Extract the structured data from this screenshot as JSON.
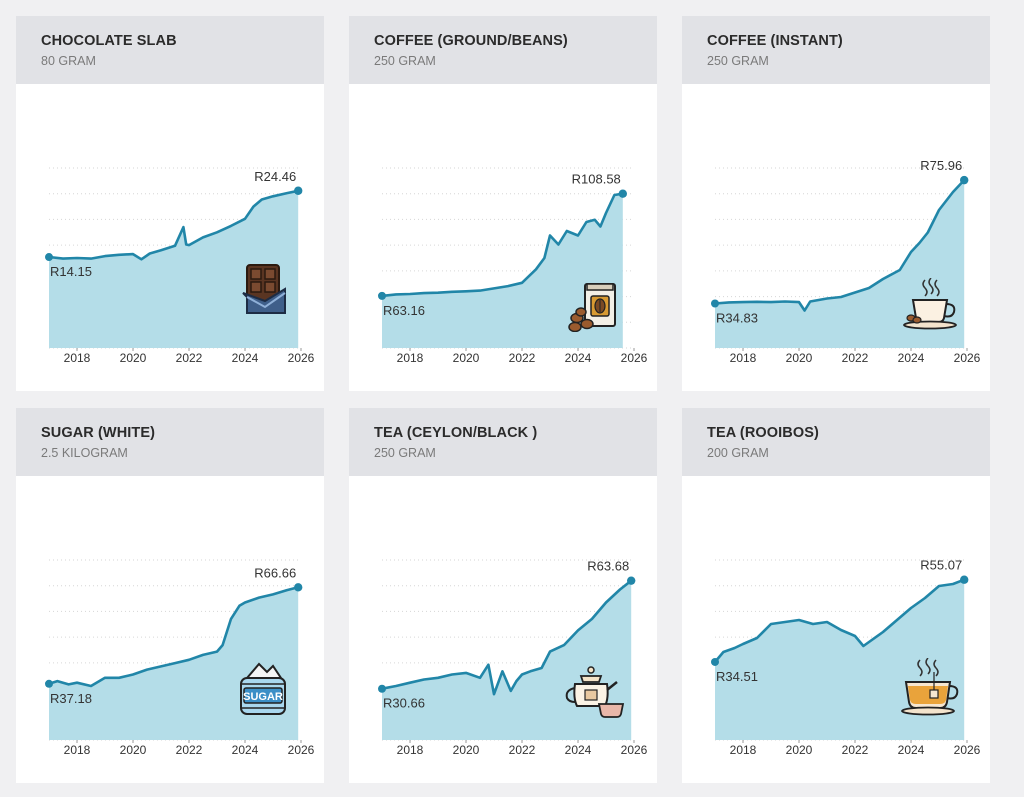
{
  "layout": {
    "x_min": 2017.0,
    "x_max": 2026.0,
    "x_ticks": [
      2018,
      2020,
      2022,
      2024,
      2026
    ]
  },
  "colors": {
    "line": "#2186a8",
    "area": "#b4dde8",
    "grid": "#d6d6d6",
    "page": "#f0f0f2",
    "header": "#e1e2e6"
  },
  "cards": [
    {
      "title": "CHOCOLATE SLAB",
      "subtitle": "80 GRAM",
      "start_label": "R14.15",
      "end_label": "R24.46",
      "icon": "chocolate-icon"
    },
    {
      "title": "COFFEE (GROUND/BEANS)",
      "subtitle": "250 GRAM",
      "start_label": "R63.16",
      "end_label": "R108.58",
      "icon": "coffee-bag-icon"
    },
    {
      "title": "COFFEE (INSTANT)",
      "subtitle": "250 GRAM",
      "start_label": "R34.83",
      "end_label": "R75.96",
      "icon": "coffee-cup-icon"
    },
    {
      "title": "SUGAR (WHITE)",
      "subtitle": "2.5 KILOGRAM",
      "start_label": "R37.18",
      "end_label": "R66.66",
      "icon": "sugar-bag-icon"
    },
    {
      "title": "TEA (CEYLON/BLACK )",
      "subtitle": "250 GRAM",
      "start_label": "R30.66",
      "end_label": "R63.68",
      "icon": "teapot-icon"
    },
    {
      "title": "TEA (ROOIBOS)",
      "subtitle": "200 GRAM",
      "start_label": "R34.51",
      "end_label": "R55.07",
      "icon": "tea-cup-icon"
    }
  ],
  "chart_data": [
    {
      "type": "area",
      "title": "CHOCOLATE SLAB",
      "subtitle": "80 GRAM",
      "ylim": [
        0,
        28
      ],
      "x_ticks": [
        2018,
        2020,
        2022,
        2024,
        2026
      ],
      "start_label": "R14.15",
      "end_label": "R24.46",
      "x": [
        2017.0,
        2017.5,
        2018.0,
        2018.5,
        2019.0,
        2019.5,
        2020.0,
        2020.3,
        2020.6,
        2021.0,
        2021.5,
        2021.8,
        2021.9,
        2022.0,
        2022.5,
        2023.0,
        2023.5,
        2024.0,
        2024.3,
        2024.6,
        2025.0,
        2025.5,
        2025.9
      ],
      "y": [
        14.15,
        13.9,
        14.0,
        13.9,
        14.3,
        14.5,
        14.6,
        13.8,
        14.7,
        15.2,
        15.9,
        18.8,
        16.1,
        16.0,
        17.2,
        18.0,
        19.0,
        20.1,
        22.0,
        23.1,
        23.6,
        24.1,
        24.46
      ]
    },
    {
      "type": "area",
      "title": "COFFEE (GROUND/BEANS)",
      "subtitle": "250 GRAM",
      "ylim": [
        40,
        120
      ],
      "x_ticks": [
        2018,
        2020,
        2022,
        2024,
        2026
      ],
      "start_label": "R63.16",
      "end_label": "R108.58",
      "x": [
        2017.0,
        2017.5,
        2018.0,
        2018.5,
        2019.0,
        2019.5,
        2020.0,
        2020.5,
        2021.0,
        2021.5,
        2022.0,
        2022.5,
        2022.8,
        2023.0,
        2023.3,
        2023.6,
        2024.0,
        2024.3,
        2024.6,
        2024.8,
        2025.0,
        2025.3,
        2025.6
      ],
      "y": [
        63.16,
        63.8,
        64.0,
        64.4,
        64.6,
        65.0,
        65.2,
        65.5,
        66.5,
        67.5,
        69.0,
        75.0,
        80.0,
        90.0,
        86.0,
        92.0,
        90.0,
        96.0,
        97.0,
        94.0,
        100.0,
        108.0,
        108.58
      ]
    },
    {
      "type": "area",
      "title": "COFFEE (INSTANT)",
      "subtitle": "250 GRAM",
      "ylim": [
        20,
        80
      ],
      "x_ticks": [
        2018,
        2020,
        2022,
        2024,
        2026
      ],
      "start_label": "R34.83",
      "end_label": "R75.96",
      "x": [
        2017.0,
        2017.5,
        2018.0,
        2018.5,
        2019.0,
        2019.5,
        2020.0,
        2020.2,
        2020.4,
        2021.0,
        2021.5,
        2022.0,
        2022.5,
        2023.0,
        2023.3,
        2023.6,
        2024.0,
        2024.3,
        2024.6,
        2025.0,
        2025.5,
        2025.9
      ],
      "y": [
        34.83,
        35.2,
        35.3,
        35.4,
        35.3,
        35.5,
        35.3,
        32.5,
        35.5,
        36.5,
        37.0,
        38.5,
        40.0,
        43.0,
        44.5,
        46.0,
        52.0,
        55.0,
        58.5,
        66.0,
        72.0,
        75.96
      ]
    },
    {
      "type": "area",
      "title": "SUGAR (WHITE)",
      "subtitle": "2.5 KILOGRAM",
      "ylim": [
        20,
        75
      ],
      "x_ticks": [
        2018,
        2020,
        2022,
        2024,
        2026
      ],
      "start_label": "R37.18",
      "end_label": "R66.66",
      "x": [
        2017.0,
        2017.3,
        2017.7,
        2018.0,
        2018.5,
        2019.0,
        2019.5,
        2020.0,
        2020.5,
        2021.0,
        2021.5,
        2022.0,
        2022.5,
        2023.0,
        2023.2,
        2023.5,
        2023.8,
        2024.0,
        2024.5,
        2025.0,
        2025.5,
        2025.9
      ],
      "y": [
        37.18,
        38.0,
        37.0,
        37.5,
        36.5,
        39.0,
        39.0,
        40.0,
        41.5,
        42.5,
        43.5,
        44.5,
        46.0,
        47.0,
        49.0,
        57.0,
        61.0,
        62.0,
        63.5,
        64.5,
        65.8,
        66.66
      ]
    },
    {
      "type": "area",
      "title": "TEA (CEYLON/BLACK )",
      "subtitle": "250 GRAM",
      "ylim": [
        15,
        70
      ],
      "x_ticks": [
        2018,
        2020,
        2022,
        2024,
        2026
      ],
      "start_label": "R30.66",
      "end_label": "R63.68",
      "x": [
        2017.0,
        2017.5,
        2018.0,
        2018.5,
        2019.0,
        2019.5,
        2020.0,
        2020.5,
        2020.8,
        2021.0,
        2021.3,
        2021.6,
        2021.8,
        2022.0,
        2022.3,
        2022.7,
        2023.0,
        2023.5,
        2024.0,
        2024.5,
        2025.0,
        2025.5,
        2025.9
      ],
      "y": [
        30.66,
        31.5,
        32.5,
        33.5,
        34.0,
        35.0,
        35.5,
        34.0,
        38.0,
        29.0,
        36.0,
        30.0,
        33.0,
        35.0,
        36.0,
        37.0,
        42.0,
        44.0,
        48.5,
        52.0,
        57.0,
        61.0,
        63.68
      ]
    },
    {
      "type": "area",
      "title": "TEA (ROOIBOS)",
      "subtitle": "200 GRAM",
      "ylim": [
        15,
        60
      ],
      "x_ticks": [
        2018,
        2020,
        2022,
        2024,
        2026
      ],
      "start_label": "R34.51",
      "end_label": "R55.07",
      "x": [
        2017.0,
        2017.3,
        2017.7,
        2018.0,
        2018.5,
        2019.0,
        2019.5,
        2020.0,
        2020.5,
        2021.0,
        2021.5,
        2022.0,
        2022.3,
        2022.5,
        2023.0,
        2023.5,
        2024.0,
        2024.5,
        2025.0,
        2025.5,
        2025.9
      ],
      "y": [
        34.51,
        37.0,
        38.0,
        39.0,
        40.5,
        44.0,
        44.5,
        45.0,
        44.0,
        44.5,
        42.5,
        41.0,
        38.5,
        39.5,
        42.0,
        45.0,
        48.0,
        50.5,
        53.5,
        54.0,
        55.07
      ]
    }
  ]
}
